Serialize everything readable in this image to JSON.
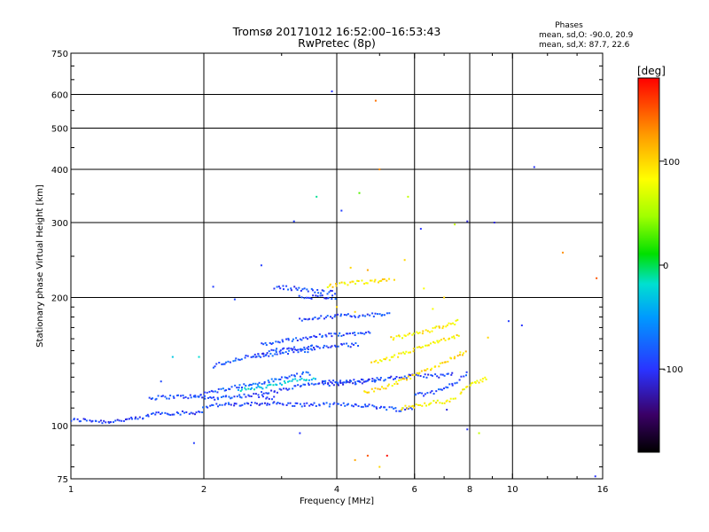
{
  "chart_data": {
    "type": "scatter",
    "title": "Tromsø 20171012 16:52:00–16:53:43",
    "subtitle": "RwPretec (8p)",
    "legend_title": "Phases",
    "legend_lines": [
      "mean, sd,O: -90.0, 20.9",
      "mean, sd,X:  87.7, 22.6"
    ],
    "xlabel": "Frequency [MHz]",
    "ylabel": "Stationary phase Virtual Height [km]",
    "x_scale": "log",
    "y_scale": "log",
    "xlim": [
      1,
      16
    ],
    "ylim": [
      75,
      750
    ],
    "x_ticks": [
      1,
      2,
      4,
      6,
      8,
      10,
      16
    ],
    "y_ticks": [
      75,
      100,
      200,
      300,
      400,
      500,
      600,
      750
    ],
    "grid": true,
    "colorbar": {
      "label": "[deg]",
      "range": [
        -180,
        180
      ],
      "ticks": [
        -100,
        0,
        100
      ]
    },
    "traces": [
      {
        "x": [
          1.0,
          1.1,
          1.2,
          1.3,
          1.45,
          1.55,
          1.7,
          1.85,
          2.0
        ],
        "y": [
          103,
          103,
          102,
          103,
          104,
          107,
          107,
          107,
          108
        ],
        "phase": -95
      },
      {
        "x": [
          1.5,
          1.7,
          1.9,
          2.1,
          2.3,
          2.6,
          2.9
        ],
        "y": [
          116,
          117,
          117,
          116,
          117,
          118,
          116
        ],
        "phase": -90
      },
      {
        "x": [
          2.0,
          2.2,
          2.5,
          2.8,
          3.2,
          3.6,
          4.0,
          4.4,
          4.8,
          5.2,
          5.6,
          6.0
        ],
        "y": [
          111,
          112,
          112,
          113,
          112,
          112,
          112,
          112,
          111,
          110,
          109,
          110
        ],
        "phase": -92
      },
      {
        "x": [
          1.9,
          2.1,
          2.3,
          2.6,
          2.9,
          3.2,
          3.5
        ],
        "y": [
          117,
          120,
          123,
          125,
          128,
          131,
          133
        ],
        "phase": -80
      },
      {
        "x": [
          2.4,
          2.7,
          3.0,
          3.3,
          3.6
        ],
        "y": [
          121,
          123,
          126,
          128,
          129
        ],
        "phase": -30
      },
      {
        "x": [
          2.7,
          3.0,
          3.3,
          3.7,
          4.1,
          4.6,
          5.0
        ],
        "y": [
          119,
          121,
          124,
          126,
          127,
          128,
          129
        ],
        "phase": -90
      },
      {
        "x": [
          3.7,
          4.3,
          4.9,
          5.6,
          6.2,
          6.8,
          7.4
        ],
        "y": [
          125,
          126,
          128,
          130,
          131,
          131,
          132
        ],
        "phase": -95
      },
      {
        "x": [
          6.0,
          6.5,
          7.0,
          7.5,
          8.0
        ],
        "y": [
          118,
          119,
          122,
          127,
          134
        ],
        "phase": -90
      },
      {
        "x": [
          2.1,
          2.3,
          2.5,
          2.8,
          3.0,
          3.3,
          3.6
        ],
        "y": [
          138,
          142,
          145,
          147,
          148,
          150,
          150
        ],
        "phase": -85
      },
      {
        "x": [
          2.6,
          2.9,
          3.2,
          3.6,
          4.0,
          4.5
        ],
        "y": [
          146,
          150,
          152,
          153,
          154,
          155
        ],
        "phase": -90
      },
      {
        "x": [
          2.7,
          3.0,
          3.4,
          3.8,
          4.2,
          4.8
        ],
        "y": [
          155,
          158,
          161,
          163,
          164,
          165
        ],
        "phase": -88
      },
      {
        "x": [
          3.3,
          3.7,
          4.2,
          4.8,
          5.3
        ],
        "y": [
          178,
          180,
          181,
          182,
          182
        ],
        "phase": -90
      },
      {
        "x": [
          2.9,
          3.2,
          3.6,
          4.0
        ],
        "y": [
          212,
          210,
          207,
          205
        ],
        "phase": -92
      },
      {
        "x": [
          3.3,
          3.7,
          4.0
        ],
        "y": [
          200,
          201,
          200
        ],
        "phase": -90
      },
      {
        "x": [
          4.6,
          5.0,
          5.5,
          6.0,
          6.5,
          7.0,
          7.5,
          7.9
        ],
        "y": [
          120,
          122,
          126,
          131,
          136,
          141,
          146,
          150
        ],
        "phase": 95
      },
      {
        "x": [
          4.8,
          5.2,
          5.6,
          6.0,
          6.6,
          7.2,
          7.6
        ],
        "y": [
          140,
          143,
          147,
          151,
          156,
          160,
          163
        ],
        "phase": 90
      },
      {
        "x": [
          5.3,
          5.8,
          6.3,
          6.8,
          7.2,
          7.6
        ],
        "y": [
          160,
          163,
          166,
          170,
          173,
          176
        ],
        "phase": 88
      },
      {
        "x": [
          3.8,
          4.1,
          4.5,
          4.9,
          5.3
        ],
        "y": [
          212,
          215,
          217,
          218,
          220
        ],
        "phase": 92
      },
      {
        "x": [
          5.6,
          6.0,
          6.5,
          7.0,
          7.5
        ],
        "y": [
          110,
          111,
          113,
          114,
          116
        ],
        "phase": 90
      },
      {
        "x": [
          7.6,
          8.0,
          8.4,
          8.8
        ],
        "y": [
          120,
          124,
          127,
          130
        ],
        "phase": 80
      }
    ],
    "scatter": [
      {
        "x": 3.9,
        "y": 610,
        "phase": -100
      },
      {
        "x": 4.9,
        "y": 580,
        "phase": 140
      },
      {
        "x": 11.2,
        "y": 405,
        "phase": -100
      },
      {
        "x": 5.0,
        "y": 400,
        "phase": 130
      },
      {
        "x": 3.6,
        "y": 345,
        "phase": -10
      },
      {
        "x": 4.5,
        "y": 352,
        "phase": 30
      },
      {
        "x": 5.8,
        "y": 345,
        "phase": 60
      },
      {
        "x": 4.1,
        "y": 320,
        "phase": -95
      },
      {
        "x": 7.9,
        "y": 302,
        "phase": -110
      },
      {
        "x": 6.2,
        "y": 290,
        "phase": -100
      },
      {
        "x": 7.4,
        "y": 297,
        "phase": 60
      },
      {
        "x": 9.1,
        "y": 300,
        "phase": -110
      },
      {
        "x": 3.2,
        "y": 302,
        "phase": -95
      },
      {
        "x": 13.0,
        "y": 255,
        "phase": 130
      },
      {
        "x": 15.5,
        "y": 222,
        "phase": 150
      },
      {
        "x": 2.7,
        "y": 238,
        "phase": -95
      },
      {
        "x": 2.1,
        "y": 212,
        "phase": -95
      },
      {
        "x": 2.35,
        "y": 198,
        "phase": -90
      },
      {
        "x": 9.8,
        "y": 176,
        "phase": -95
      },
      {
        "x": 10.5,
        "y": 172,
        "phase": -100
      },
      {
        "x": 1.7,
        "y": 145,
        "phase": -30
      },
      {
        "x": 1.95,
        "y": 145,
        "phase": -20
      },
      {
        "x": 1.6,
        "y": 127,
        "phase": -90
      },
      {
        "x": 1.9,
        "y": 91,
        "phase": -95
      },
      {
        "x": 3.3,
        "y": 96,
        "phase": -100
      },
      {
        "x": 4.7,
        "y": 85,
        "phase": 150
      },
      {
        "x": 5.2,
        "y": 85,
        "phase": 175
      },
      {
        "x": 4.4,
        "y": 83,
        "phase": 120
      },
      {
        "x": 5.0,
        "y": 80,
        "phase": 100
      },
      {
        "x": 7.9,
        "y": 98,
        "phase": -100
      },
      {
        "x": 8.4,
        "y": 96,
        "phase": 60
      },
      {
        "x": 15.4,
        "y": 76,
        "phase": -100
      },
      {
        "x": 7.1,
        "y": 109,
        "phase": -110
      },
      {
        "x": 8.8,
        "y": 161,
        "phase": 100
      },
      {
        "x": 7.0,
        "y": 200,
        "phase": 100
      },
      {
        "x": 5.7,
        "y": 245,
        "phase": 100
      },
      {
        "x": 4.3,
        "y": 235,
        "phase": 100
      },
      {
        "x": 4.7,
        "y": 232,
        "phase": 120
      },
      {
        "x": 4.4,
        "y": 185,
        "phase": 100
      },
      {
        "x": 4.0,
        "y": 190,
        "phase": 100
      },
      {
        "x": 5.4,
        "y": 220,
        "phase": 100
      },
      {
        "x": 6.3,
        "y": 210,
        "phase": 80
      },
      {
        "x": 6.6,
        "y": 188,
        "phase": 80
      }
    ]
  }
}
